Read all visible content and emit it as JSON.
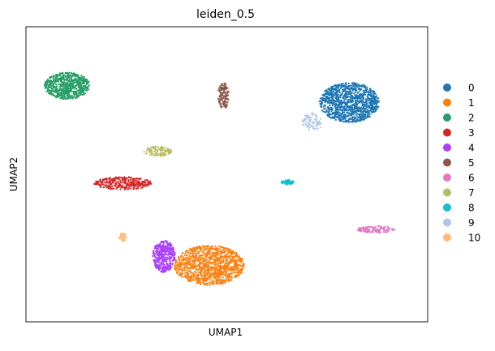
{
  "chart_data": {
    "type": "scatter",
    "title": "leiden_0.5",
    "xlabel": "UMAP1",
    "ylabel": "UMAP2",
    "ticks_shown": false,
    "grid": false,
    "legend_position": "right",
    "clusters": [
      {
        "label": "0",
        "color": "#1f77b4",
        "center": [
          14.2,
          8.1
        ],
        "spread": [
          1.45,
          1.55
        ],
        "count": 1100,
        "shape": "ellipse"
      },
      {
        "label": "1",
        "color": "#ff7f0e",
        "center": [
          7.4,
          -4.6
        ],
        "spread": [
          1.7,
          1.55
        ],
        "count": 1100,
        "shape": "ellipse"
      },
      {
        "label": "2",
        "color": "#279e68",
        "center": [
          0.5,
          9.4
        ],
        "spread": [
          1.1,
          1.05
        ],
        "count": 650,
        "shape": "ellipse"
      },
      {
        "label": "3",
        "color": "#d62728",
        "center": [
          3.2,
          1.8
        ],
        "spread": [
          1.4,
          0.5
        ],
        "count": 320,
        "shape": "ellipse"
      },
      {
        "label": "4",
        "color": "#aa40fc",
        "center": [
          5.2,
          -3.9
        ],
        "spread": [
          0.55,
          1.25
        ],
        "count": 380,
        "shape": "ellipse"
      },
      {
        "label": "5",
        "color": "#8c564b",
        "center": [
          8.1,
          8.6
        ],
        "spread": [
          0.28,
          1.0
        ],
        "count": 130,
        "shape": "ellipse"
      },
      {
        "label": "6",
        "color": "#e377c2",
        "center": [
          15.5,
          -1.8
        ],
        "spread": [
          0.9,
          0.28
        ],
        "count": 120,
        "shape": "ellipse"
      },
      {
        "label": "7",
        "color": "#b5bd61",
        "center": [
          4.9,
          4.3
        ],
        "spread": [
          0.7,
          0.38
        ],
        "count": 110,
        "shape": "ellipse"
      },
      {
        "label": "8",
        "color": "#17becf",
        "center": [
          11.2,
          1.9
        ],
        "spread": [
          0.3,
          0.2
        ],
        "count": 60,
        "shape": "ellipse"
      },
      {
        "label": "9",
        "color": "#aec7e8",
        "center": [
          12.4,
          6.6
        ],
        "spread": [
          0.5,
          0.7
        ],
        "count": 80,
        "shape": "ellipse"
      },
      {
        "label": "10",
        "color": "#ffbb78",
        "center": [
          3.2,
          -2.4
        ],
        "spread": [
          0.18,
          0.35
        ],
        "count": 40,
        "shape": "ellipse"
      }
    ],
    "xlim": [
      -1.5,
      18.0
    ],
    "ylim": [
      -9.0,
      14.0
    ],
    "legend": [
      "0",
      "1",
      "2",
      "3",
      "4",
      "5",
      "6",
      "7",
      "8",
      "9",
      "10"
    ]
  }
}
